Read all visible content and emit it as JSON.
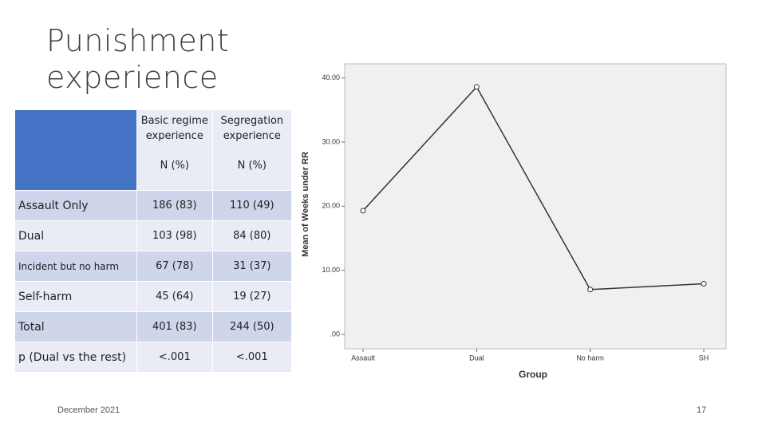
{
  "slide": {
    "title": "Punishment experience",
    "date": "December 2021",
    "page": "17"
  },
  "table": {
    "header": [
      {
        "title": "Basic regime experience",
        "unit": "N (%)"
      },
      {
        "title": "Segregation experience",
        "unit": "N (%)"
      }
    ],
    "rows": [
      [
        "Assault Only",
        "186 (83)",
        "110 (49)"
      ],
      [
        "Dual",
        "103 (98)",
        "84 (80)"
      ],
      [
        "Incident but no harm",
        "67 (78)",
        "31 (37)"
      ],
      [
        "Self-harm",
        "45 (64)",
        "19 (27)"
      ],
      [
        "Total",
        "401 (83)",
        "244 (50)"
      ],
      [
        "p (Dual vs the rest)",
        "<.001",
        "<.001"
      ]
    ]
  },
  "chart_data": {
    "type": "line",
    "x_label": "Group",
    "y_label": "Mean of Weeks under RR",
    "categories": [
      "Assault",
      "Dual",
      "No harm",
      "SH"
    ],
    "values": [
      19.3,
      38.6,
      7.0,
      7.9
    ],
    "color": "#333333",
    "ylim": [
      0,
      42.2
    ],
    "yticks": [
      {
        "value": 0,
        "label": ".00"
      },
      {
        "value": 10,
        "label": "10.00"
      },
      {
        "value": 20,
        "label": "20.00"
      },
      {
        "value": 30,
        "label": "30.00"
      },
      {
        "value": 40,
        "label": "40.00"
      }
    ]
  }
}
